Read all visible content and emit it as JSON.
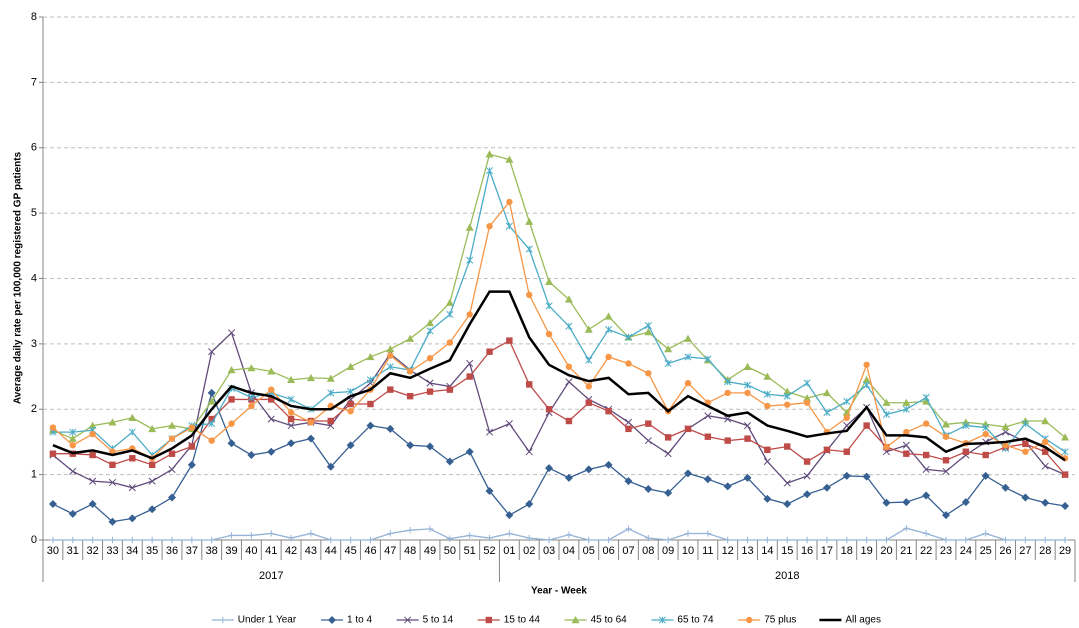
{
  "chart_data": {
    "type": "line",
    "y_label": "Average daily rate per 100,000 registered GP patients",
    "x_label": "Year - Week",
    "categories": [
      "30",
      "31",
      "32",
      "33",
      "34",
      "35",
      "36",
      "37",
      "38",
      "39",
      "40",
      "41",
      "42",
      "43",
      "44",
      "45",
      "46",
      "47",
      "48",
      "49",
      "50",
      "51",
      "52",
      "01",
      "02",
      "03",
      "04",
      "05",
      "06",
      "07",
      "08",
      "09",
      "10",
      "11",
      "12",
      "13",
      "14",
      "15",
      "16",
      "17",
      "18",
      "19",
      "20",
      "21",
      "22",
      "23",
      "24",
      "25",
      "26",
      "27",
      "28",
      "29"
    ],
    "x_groups": [
      {
        "label": "2017",
        "span": 23
      },
      {
        "label": "2018",
        "span": 29
      }
    ],
    "ylim": [
      0,
      8
    ],
    "yticks": [
      0,
      1,
      2,
      3,
      4,
      5,
      6,
      7,
      8
    ],
    "grid": true,
    "legend": "bottom",
    "series": [
      {
        "name": "Under 1 Year",
        "color": "#95b3d7",
        "marker": "plus",
        "values": [
          0,
          0,
          0,
          0,
          0,
          0,
          0,
          0,
          0,
          0.07,
          0.07,
          0.1,
          0.03,
          0.1,
          0,
          0,
          0,
          0.1,
          0.15,
          0.17,
          0.02,
          0.07,
          0.03,
          0.1,
          0.03,
          0,
          0.08,
          0,
          0,
          0.17,
          0.03,
          0,
          0.1,
          0.1,
          0,
          0,
          0,
          0,
          0,
          0,
          0,
          0,
          0,
          0.18,
          0.1,
          0,
          0,
          0.1,
          0,
          0,
          0,
          0
        ]
      },
      {
        "name": "1 to 4",
        "color": "#376092",
        "marker": "diamond",
        "values": [
          0.55,
          0.4,
          0.55,
          0.28,
          0.33,
          0.47,
          0.65,
          1.15,
          2.25,
          1.48,
          1.3,
          1.35,
          1.48,
          1.55,
          1.12,
          1.45,
          1.75,
          1.7,
          1.45,
          1.43,
          1.2,
          1.35,
          0.75,
          0.38,
          0.55,
          1.1,
          0.95,
          1.08,
          1.15,
          0.9,
          0.78,
          0.72,
          1.02,
          0.93,
          0.82,
          0.95,
          0.63,
          0.55,
          0.7,
          0.8,
          0.98,
          0.97,
          0.57,
          0.58,
          0.68,
          0.38,
          0.58,
          0.98,
          0.8,
          0.65,
          0.57,
          0.52
        ]
      },
      {
        "name": "5 to 14",
        "color": "#604a7b",
        "marker": "x",
        "values": [
          1.3,
          1.05,
          0.9,
          0.88,
          0.8,
          0.9,
          1.08,
          1.45,
          2.88,
          3.17,
          2.25,
          1.85,
          1.75,
          1.8,
          1.75,
          2.15,
          2.4,
          2.85,
          2.6,
          2.4,
          2.35,
          2.7,
          1.65,
          1.78,
          1.35,
          1.95,
          2.42,
          2.15,
          2.0,
          1.8,
          1.52,
          1.32,
          1.7,
          1.9,
          1.85,
          1.75,
          1.2,
          0.87,
          0.98,
          1.37,
          1.75,
          2.03,
          1.35,
          1.45,
          1.08,
          1.05,
          1.3,
          1.5,
          1.65,
          1.5,
          1.13,
          1.0
        ]
      },
      {
        "name": "15 to 44",
        "color": "#be4b48",
        "marker": "square",
        "values": [
          1.32,
          1.32,
          1.3,
          1.15,
          1.25,
          1.15,
          1.32,
          1.43,
          1.85,
          2.15,
          2.15,
          2.15,
          1.85,
          1.82,
          1.82,
          2.08,
          2.08,
          2.3,
          2.2,
          2.27,
          2.3,
          2.5,
          2.88,
          3.05,
          2.38,
          2.0,
          1.82,
          2.1,
          1.97,
          1.7,
          1.78,
          1.57,
          1.7,
          1.58,
          1.52,
          1.55,
          1.38,
          1.43,
          1.2,
          1.38,
          1.35,
          1.75,
          1.42,
          1.32,
          1.3,
          1.22,
          1.35,
          1.3,
          1.42,
          1.47,
          1.35,
          1.0
        ]
      },
      {
        "name": "45 to 64",
        "color": "#9bbb59",
        "marker": "triangle",
        "values": [
          1.68,
          1.55,
          1.75,
          1.8,
          1.87,
          1.7,
          1.75,
          1.7,
          2.12,
          2.6,
          2.63,
          2.58,
          2.45,
          2.48,
          2.47,
          2.65,
          2.8,
          2.92,
          3.08,
          3.32,
          3.63,
          4.78,
          5.9,
          5.82,
          4.87,
          3.95,
          3.68,
          3.22,
          3.42,
          3.1,
          3.18,
          2.92,
          3.08,
          2.75,
          2.45,
          2.65,
          2.5,
          2.27,
          2.17,
          2.25,
          1.95,
          2.45,
          2.1,
          2.1,
          2.12,
          1.77,
          1.8,
          1.77,
          1.73,
          1.82,
          1.82,
          1.57
        ]
      },
      {
        "name": "65 to 74",
        "color": "#4bacc6",
        "marker": "star",
        "values": [
          1.65,
          1.65,
          1.68,
          1.4,
          1.65,
          1.3,
          1.55,
          1.75,
          1.78,
          2.32,
          2.18,
          2.25,
          2.15,
          2.0,
          2.25,
          2.27,
          2.45,
          2.65,
          2.6,
          3.2,
          3.45,
          4.28,
          5.65,
          4.8,
          4.45,
          3.58,
          3.27,
          2.75,
          3.22,
          3.1,
          3.28,
          2.7,
          2.8,
          2.77,
          2.42,
          2.37,
          2.23,
          2.2,
          2.4,
          1.95,
          2.12,
          2.37,
          1.92,
          2.0,
          2.18,
          1.6,
          1.75,
          1.72,
          1.4,
          1.78,
          1.55,
          1.35
        ]
      },
      {
        "name": "75 plus",
        "color": "#f79646",
        "marker": "circle",
        "values": [
          1.72,
          1.45,
          1.62,
          1.35,
          1.4,
          1.25,
          1.55,
          1.72,
          1.52,
          1.78,
          2.05,
          2.3,
          1.95,
          1.8,
          2.05,
          1.97,
          2.3,
          2.82,
          2.58,
          2.78,
          3.02,
          3.45,
          4.8,
          5.17,
          3.75,
          3.15,
          2.65,
          2.35,
          2.8,
          2.7,
          2.55,
          1.97,
          2.4,
          2.1,
          2.25,
          2.25,
          2.05,
          2.07,
          2.1,
          1.65,
          1.87,
          2.68,
          1.42,
          1.65,
          1.78,
          1.58,
          1.48,
          1.62,
          1.45,
          1.35,
          1.5,
          1.25
        ]
      },
      {
        "name": "All ages",
        "color": "#000000",
        "marker": "none",
        "width": 2.5,
        "values": [
          1.45,
          1.33,
          1.37,
          1.3,
          1.37,
          1.25,
          1.4,
          1.6,
          2.0,
          2.35,
          2.25,
          2.2,
          2.05,
          2.0,
          2.0,
          2.2,
          2.3,
          2.55,
          2.48,
          2.62,
          2.75,
          3.3,
          3.8,
          3.8,
          3.1,
          2.68,
          2.52,
          2.43,
          2.48,
          2.23,
          2.25,
          1.97,
          2.2,
          2.05,
          1.9,
          1.95,
          1.75,
          1.67,
          1.58,
          1.63,
          1.67,
          2.03,
          1.6,
          1.6,
          1.57,
          1.35,
          1.47,
          1.48,
          1.5,
          1.55,
          1.42,
          1.22
        ]
      }
    ]
  }
}
